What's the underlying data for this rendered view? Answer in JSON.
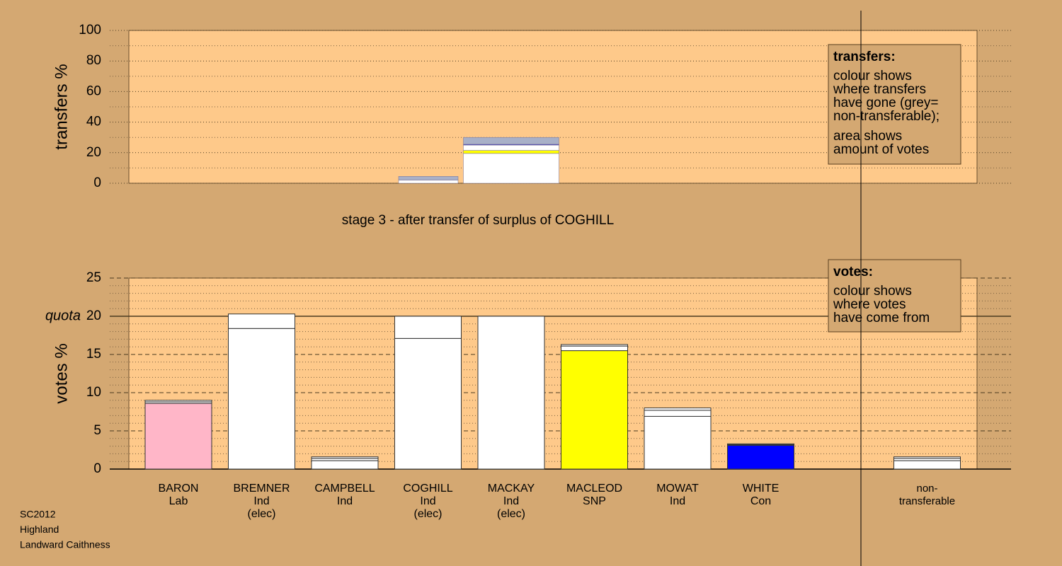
{
  "chart_data": [
    {
      "type": "transfer-blocks",
      "title": "stage 3 - after transfer of surplus of COGHILL",
      "ylabel": "transfers %",
      "ylim": [
        0,
        100
      ],
      "yticks": [
        0,
        20,
        40,
        60,
        80,
        100
      ],
      "minor_yticks": [
        10,
        30,
        50,
        70,
        90
      ],
      "series": [
        {
          "color": "#ffffff",
          "values": [
            2,
            19.5
          ]
        },
        {
          "color": "#ffff00",
          "values": [
            0,
            2
          ]
        },
        {
          "color": "#ffffff",
          "values": [
            0,
            3.5
          ]
        },
        {
          "color": "#3030d0",
          "values": [
            0,
            0.5
          ]
        },
        {
          "color": "#a8b0c8",
          "values": [
            2.5,
            4.5
          ]
        }
      ],
      "legend_box": {
        "title": "transfers:",
        "paragraphs": [
          [
            "colour shows",
            "where transfers",
            "have gone (grey=",
            "non-transferable);"
          ],
          [
            "area shows",
            "amount of votes"
          ]
        ]
      }
    },
    {
      "type": "stacked-bar",
      "ylabel": "votes %",
      "ylim": [
        0,
        25
      ],
      "yticks": [
        0,
        5,
        10,
        15,
        20,
        25
      ],
      "minor_yticks": [
        1,
        2,
        3,
        4,
        6,
        7,
        8,
        9,
        11,
        12,
        13,
        14,
        16,
        17,
        18,
        19,
        21,
        22,
        23,
        24
      ],
      "quota": {
        "value": 20,
        "label": "quota"
      },
      "categories": [
        [
          "BARON",
          "Lab"
        ],
        [
          "BREMNER",
          "Ind",
          "(elec)"
        ],
        [
          "CAMPBELL",
          "Ind"
        ],
        [
          "COGHILL",
          "Ind",
          "(elec)"
        ],
        [
          "MACKAY",
          "Ind",
          "(elec)"
        ],
        [
          "MACLEOD",
          "SNP"
        ],
        [
          "MOWAT",
          "Ind"
        ],
        [
          "WHITE",
          "Con"
        ],
        [
          "non-",
          "transferable"
        ]
      ],
      "series": [
        {
          "colors": [
            "#ffb6c8",
            "#ffffff",
            "#ffffff",
            "#ffffff",
            "#ffffff",
            "#ffff00",
            "#ffffff",
            "#0000ff",
            "#ffffff"
          ],
          "values": [
            8.6,
            18.4,
            1.1,
            17.1,
            20.0,
            15.5,
            6.9,
            3.1,
            1.1
          ]
        },
        {
          "color": "#ffffff",
          "values": [
            0.2,
            1.9,
            0.3,
            2.9,
            0,
            0.6,
            0.8,
            0.1,
            0.3
          ]
        },
        {
          "color": "#ffffff",
          "values": [
            0.2,
            0,
            0.2,
            0,
            0,
            0.2,
            0.3,
            0.1,
            0.2
          ]
        }
      ],
      "legend_box": {
        "title": "votes:",
        "paragraphs": [
          [
            "colour shows",
            "where votes",
            "have come from"
          ]
        ]
      }
    }
  ],
  "footer": [
    "SC2012",
    "Highland",
    "Landward Caithness"
  ]
}
